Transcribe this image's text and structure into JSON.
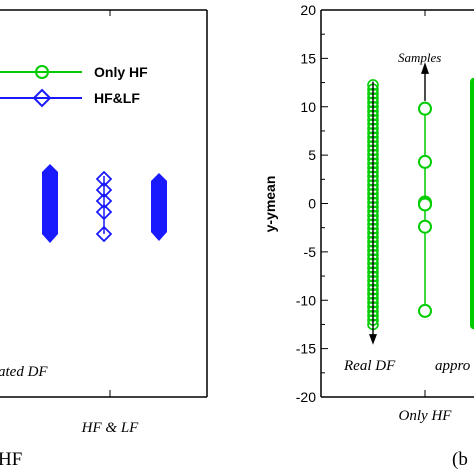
{
  "chart_data": [
    {
      "type": "scatter",
      "panel": "left",
      "legend": [
        {
          "name": "Only HF",
          "color": "#00cc00",
          "marker": "circle"
        },
        {
          "name": "HF&LF",
          "color": "#1a1aff",
          "marker": "diamond"
        }
      ],
      "legend_placement": "top",
      "x_tick_labels": [
        "HF & LF"
      ],
      "annotations": [
        "ated DF"
      ],
      "caption": "HF",
      "series_color": "#1a1aff"
    },
    {
      "type": "scatter",
      "panel": "right",
      "ylabel": "y-ymean",
      "ylim": [
        -20,
        20
      ],
      "y_ticks": [
        -20,
        -15,
        -10,
        -5,
        0,
        5,
        10,
        15,
        20
      ],
      "x_tick_labels": [
        "Only HF"
      ],
      "annotations": [
        "Samples",
        "Real DF",
        "appro"
      ],
      "caption": "(b",
      "series": [
        {
          "name": "Real DF",
          "color": "#00cc00",
          "range": [
            -12.5,
            12.6
          ]
        },
        {
          "name": "Samples",
          "color": "#00cc00",
          "values": [
            9.8,
            4.3,
            0.1,
            -0.1,
            -2.4,
            -11.1
          ]
        },
        {
          "name": "appro",
          "color": "#00cc00",
          "range": [
            -13,
            13
          ]
        }
      ]
    }
  ]
}
